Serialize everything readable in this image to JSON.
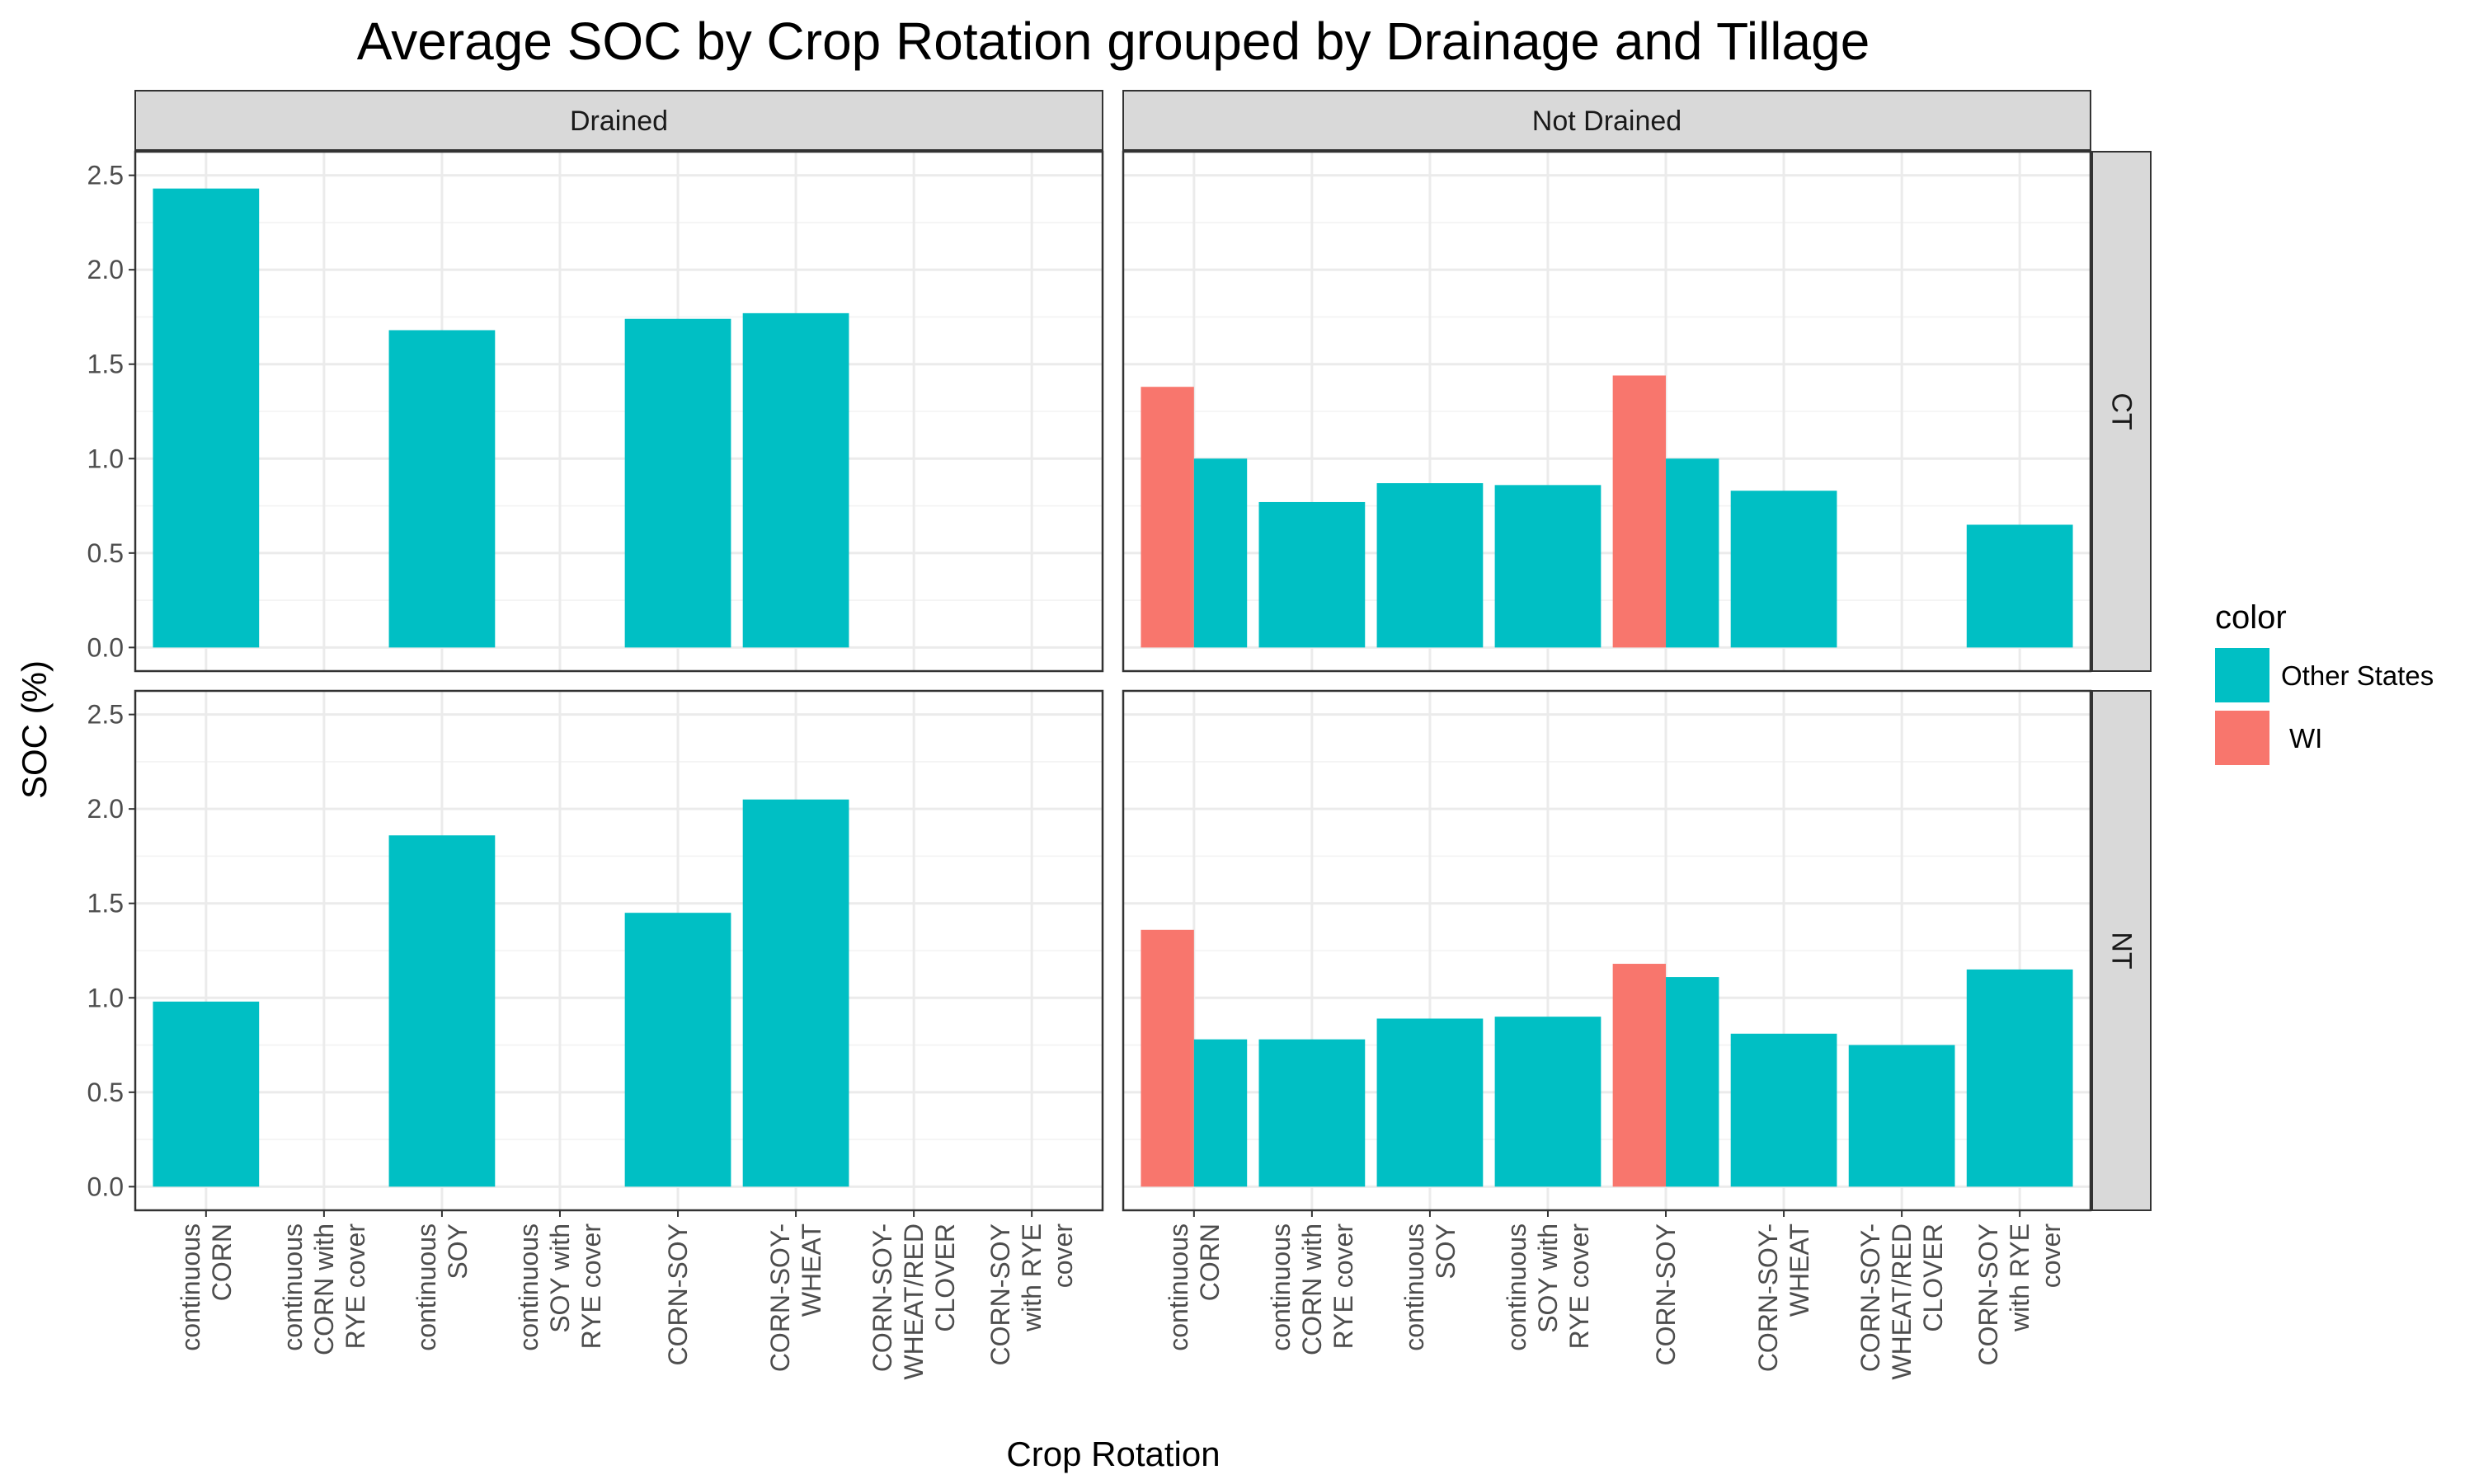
{
  "chart_data": {
    "type": "bar",
    "title": "Average SOC by Crop Rotation grouped by Drainage and Tillage",
    "xlabel": "Crop Rotation",
    "ylabel": "SOC (%)",
    "ylim": [
      0,
      2.5
    ],
    "yticks": [
      "0.0",
      "0.5",
      "1.0",
      "1.5",
      "2.0",
      "2.5"
    ],
    "grid": true,
    "legend": {
      "title": "color",
      "position": "right",
      "entries": [
        {
          "name": "Other States",
          "color": "#00BFC4"
        },
        {
          "name": "WI",
          "color": "#F8766D"
        }
      ]
    },
    "columns": [
      "Drained",
      "Not Drained"
    ],
    "rows": [
      "CT",
      "NT"
    ],
    "categories": [
      [
        "continuous",
        "CORN"
      ],
      [
        "continuous",
        "CORN with",
        "RYE cover"
      ],
      [
        "continuous",
        "SOY"
      ],
      [
        "continuous",
        "SOY with",
        "RYE cover"
      ],
      [
        "CORN-SOY"
      ],
      [
        "CORN-SOY-",
        "WHEAT"
      ],
      [
        "CORN-SOY-",
        "WHEAT/RED",
        "CLOVER"
      ],
      [
        "CORN-SOY",
        "with RYE",
        "cover"
      ]
    ],
    "panels": [
      {
        "column": "Drained",
        "row": "CT",
        "series": [
          {
            "name": "Other States",
            "values": [
              2.43,
              null,
              1.68,
              null,
              1.74,
              1.77,
              null,
              null
            ]
          },
          {
            "name": "WI",
            "values": [
              null,
              null,
              null,
              null,
              null,
              null,
              null,
              null
            ]
          }
        ]
      },
      {
        "column": "Not Drained",
        "row": "CT",
        "series": [
          {
            "name": "Other States",
            "values": [
              1.0,
              0.77,
              0.87,
              0.86,
              1.0,
              0.83,
              null,
              0.65
            ]
          },
          {
            "name": "WI",
            "values": [
              1.38,
              null,
              null,
              null,
              1.44,
              null,
              null,
              null
            ]
          }
        ]
      },
      {
        "column": "Drained",
        "row": "NT",
        "series": [
          {
            "name": "Other States",
            "values": [
              0.98,
              null,
              1.86,
              null,
              1.45,
              2.05,
              null,
              null
            ]
          },
          {
            "name": "WI",
            "values": [
              null,
              null,
              null,
              null,
              null,
              null,
              null,
              null
            ]
          }
        ]
      },
      {
        "column": "Not Drained",
        "row": "NT",
        "series": [
          {
            "name": "Other States",
            "values": [
              0.78,
              0.78,
              0.89,
              0.9,
              1.11,
              0.81,
              0.75,
              1.15
            ]
          },
          {
            "name": "WI",
            "values": [
              1.36,
              null,
              null,
              null,
              1.18,
              null,
              null,
              null
            ]
          }
        ]
      }
    ]
  }
}
